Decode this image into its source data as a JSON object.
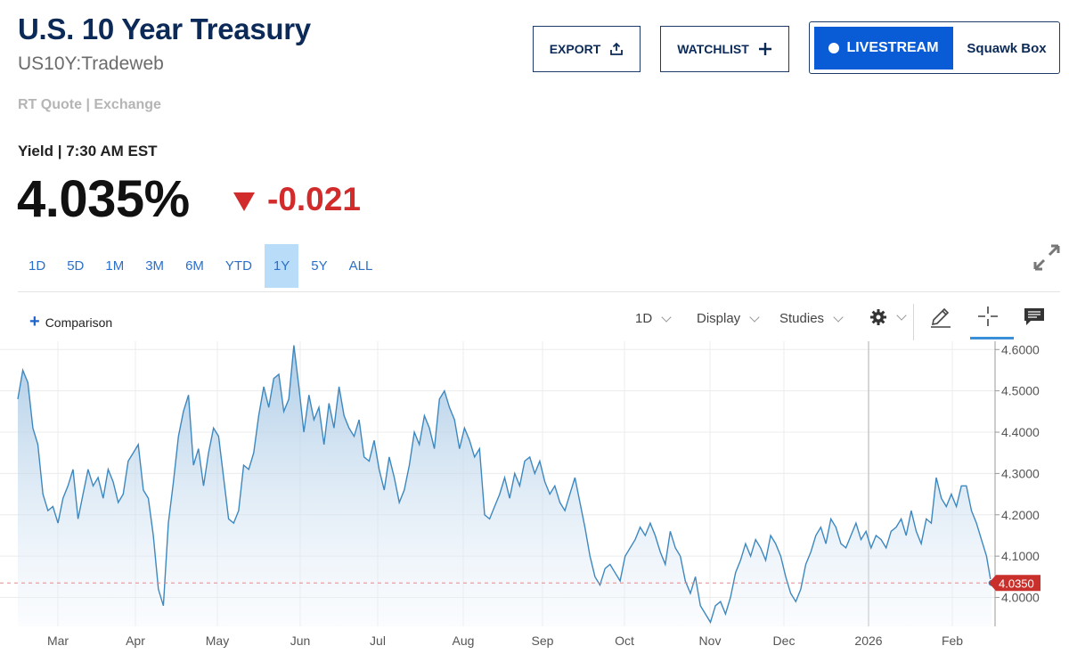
{
  "header": {
    "title": "U.S. 10 Year Treasury",
    "symbol": "US10Y:Tradeweb",
    "quote_source": "RT Quote | Exchange",
    "yield_label": "Yield | 7:30 AM EST",
    "price": "4.035%",
    "change": "-0.021"
  },
  "buttons": {
    "export": "EXPORT",
    "watchlist": "WATCHLIST",
    "livestream": "LIVESTREAM",
    "squawk": "Squawk Box"
  },
  "ranges": [
    "1D",
    "5D",
    "1M",
    "3M",
    "6M",
    "YTD",
    "1Y",
    "5Y",
    "ALL"
  ],
  "active_range": "1Y",
  "toolbar": {
    "comparison": "Comparison",
    "interval": "1D",
    "display": "Display",
    "studies": "Studies"
  },
  "icons": [
    "expand-icon",
    "export-icon",
    "plus-icon",
    "settings-gear-icon",
    "pencil-icon",
    "crosshair-icon",
    "comment-icon"
  ],
  "colors": {
    "brand_navy": "#0c2a57",
    "livestream_blue": "#0a5bd6",
    "negative_red": "#d12b2b",
    "line_blue": "#3d88bf",
    "active_range_bg": "#b9dcf9"
  },
  "chart_data": {
    "type": "area",
    "x_labels": [
      "Mar",
      "Apr",
      "May",
      "Jun",
      "Jul",
      "Aug",
      "Sep",
      "Oct",
      "Nov",
      "Dec",
      "2026",
      "Feb"
    ],
    "y_ticks": [
      "4.6000",
      "4.5000",
      "4.4000",
      "4.3000",
      "4.2000",
      "4.1000",
      "4.0000"
    ],
    "ylim": [
      3.93,
      4.62
    ],
    "last_value_label": "4.0350",
    "last_value": 4.035,
    "grid": true,
    "values": [
      4.48,
      4.55,
      4.52,
      4.41,
      4.37,
      4.25,
      4.21,
      4.22,
      4.18,
      4.24,
      4.27,
      4.31,
      4.19,
      4.25,
      4.31,
      4.27,
      4.29,
      4.24,
      4.31,
      4.28,
      4.23,
      4.25,
      4.33,
      4.35,
      4.37,
      4.26,
      4.24,
      4.15,
      4.02,
      3.98,
      4.18,
      4.28,
      4.39,
      4.45,
      4.49,
      4.32,
      4.36,
      4.27,
      4.35,
      4.41,
      4.39,
      4.29,
      4.19,
      4.18,
      4.21,
      4.32,
      4.31,
      4.35,
      4.44,
      4.51,
      4.46,
      4.53,
      4.54,
      4.45,
      4.48,
      4.61,
      4.51,
      4.4,
      4.49,
      4.43,
      4.46,
      4.37,
      4.47,
      4.41,
      4.51,
      4.44,
      4.41,
      4.39,
      4.43,
      4.34,
      4.33,
      4.38,
      4.31,
      4.26,
      4.34,
      4.29,
      4.23,
      4.26,
      4.32,
      4.4,
      4.37,
      4.44,
      4.41,
      4.36,
      4.48,
      4.5,
      4.46,
      4.43,
      4.36,
      4.41,
      4.38,
      4.34,
      4.36,
      4.2,
      4.19,
      4.22,
      4.25,
      4.29,
      4.24,
      4.3,
      4.27,
      4.33,
      4.34,
      4.3,
      4.33,
      4.28,
      4.25,
      4.27,
      4.23,
      4.21,
      4.25,
      4.29,
      4.23,
      4.17,
      4.1,
      4.05,
      4.03,
      4.07,
      4.08,
      4.06,
      4.04,
      4.1,
      4.12,
      4.14,
      4.17,
      4.15,
      4.18,
      4.15,
      4.11,
      4.08,
      4.16,
      4.12,
      4.1,
      4.04,
      4.01,
      4.05,
      3.98,
      3.96,
      3.94,
      3.98,
      3.99,
      3.96,
      4.0,
      4.06,
      4.09,
      4.13,
      4.1,
      4.14,
      4.12,
      4.09,
      4.15,
      4.13,
      4.1,
      4.05,
      4.01,
      3.99,
      4.02,
      4.08,
      4.11,
      4.15,
      4.17,
      4.13,
      4.19,
      4.17,
      4.13,
      4.12,
      4.15,
      4.18,
      4.14,
      4.16,
      4.12,
      4.15,
      4.14,
      4.12,
      4.16,
      4.17,
      4.19,
      4.15,
      4.21,
      4.16,
      4.13,
      4.19,
      4.18,
      4.29,
      4.24,
      4.22,
      4.25,
      4.22,
      4.27,
      4.27,
      4.21,
      4.18,
      4.14,
      4.1,
      4.03
    ]
  }
}
